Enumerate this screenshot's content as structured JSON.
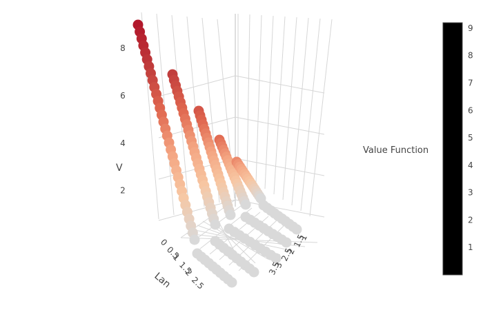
{
  "chart_data": {
    "type": "scatter3d",
    "title": "",
    "axes": {
      "x": {
        "label": "Lan",
        "ticks": [
          "0",
          "0.5",
          "1",
          "1.5",
          "2",
          "2.5"
        ]
      },
      "y": {
        "label": "",
        "ticks": [
          "1",
          "1.5",
          "2",
          "2.5",
          "3",
          "3.5"
        ]
      },
      "z": {
        "label": "V",
        "ticks": [
          "2",
          "4",
          "6",
          "8"
        ],
        "range": [
          0,
          9.6
        ]
      }
    },
    "colorbar": {
      "title": "Value Function",
      "ticks": [
        "1",
        "2",
        "3",
        "4",
        "5",
        "6",
        "7",
        "8",
        "9"
      ],
      "range": [
        0,
        9.2
      ]
    },
    "series": [
      {
        "x": 0,
        "v_start": 9.6,
        "v_end": 0.0,
        "points": 32
      },
      {
        "x": 1,
        "v_start": 7.6,
        "v_end": 0.0,
        "points": 28
      },
      {
        "x": 2,
        "v_start": 6.5,
        "v_end": 0.0,
        "points": 24
      },
      {
        "x": 3,
        "v_start": 5.6,
        "v_end": 0.0,
        "points": 20
      },
      {
        "x": 4,
        "v_start": 4.7,
        "v_end": 0.0,
        "points": 16
      }
    ],
    "grid": true,
    "colorscale": [
      "#d9d9d9",
      "#f7c7a3",
      "#f4a582",
      "#e0674f",
      "#c03c3c",
      "#b2182b"
    ]
  }
}
